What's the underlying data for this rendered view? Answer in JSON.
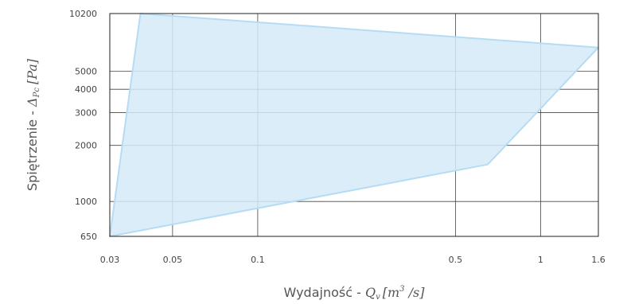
{
  "chart_data": {
    "type": "area",
    "title": "",
    "xlabel": {
      "prefix": "Wydajność - ",
      "symbol": "Q",
      "subscript": "v",
      "unit_open": "[m",
      "unit_sup": "3",
      "unit_close": " /s]"
    },
    "ylabel": {
      "prefix": "Spiętrzenie - ",
      "symbol": "Δ",
      "subscript": "Pc",
      "unit": "[Pa]"
    },
    "x_scale": "log",
    "y_scale": "log",
    "xlim": [
      0.03,
      1.6
    ],
    "ylim": [
      650,
      10200
    ],
    "x_ticks": [
      {
        "value": 0.03,
        "label": "0.03"
      },
      {
        "value": 0.05,
        "label": "0.05"
      },
      {
        "value": 0.1,
        "label": "0.1"
      },
      {
        "value": 0.5,
        "label": "0.5"
      },
      {
        "value": 1,
        "label": "1"
      },
      {
        "value": 1.6,
        "label": "1.6"
      }
    ],
    "y_ticks": [
      {
        "value": 650,
        "label": "650"
      },
      {
        "value": 1000,
        "label": "1000"
      },
      {
        "value": 2000,
        "label": "2000"
      },
      {
        "value": 3000,
        "label": "3000"
      },
      {
        "value": 4000,
        "label": "4000"
      },
      {
        "value": 5000,
        "label": "5000"
      },
      {
        "value": 10200,
        "label": "10200"
      }
    ],
    "grid": true,
    "fill_color": "#d4eaf8",
    "edge_color": "#b6dcf3",
    "region": {
      "x": [
        0.03,
        0.0385,
        1.6,
        0.65,
        0.03
      ],
      "y": [
        650,
        10200,
        6700,
        1580,
        650
      ]
    }
  }
}
